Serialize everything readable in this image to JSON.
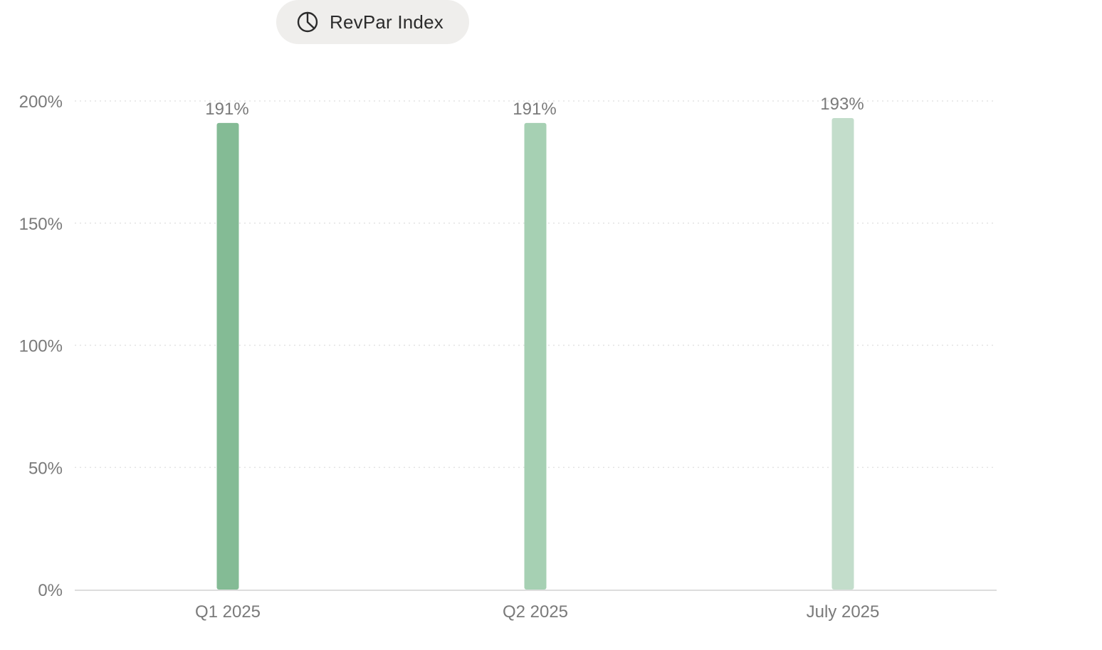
{
  "tab": {
    "label": "RevPar Index",
    "icon": "pie-chart-icon"
  },
  "chart_data": {
    "type": "bar",
    "categories": [
      "Q1 2025",
      "Q2 2025",
      "July 2025"
    ],
    "values": [
      191,
      191,
      193
    ],
    "value_labels": [
      "191%",
      "191%",
      "193%"
    ],
    "title": "",
    "xlabel": "",
    "ylabel": "",
    "ylim": [
      0,
      200
    ],
    "yticks": [
      0,
      50,
      100,
      150,
      200
    ],
    "ytick_labels": [
      "0%",
      "50%",
      "100%",
      "150%",
      "200%"
    ],
    "grid": true,
    "legend": "none",
    "bar_colors": [
      "#84bb95",
      "#a6d0b3",
      "#c3ddcb"
    ],
    "colors": {
      "grid": "#e3e3e3",
      "axis": "#dddddd",
      "tick_text": "#7a7a7a",
      "value_text": "#7a7a7a"
    }
  }
}
